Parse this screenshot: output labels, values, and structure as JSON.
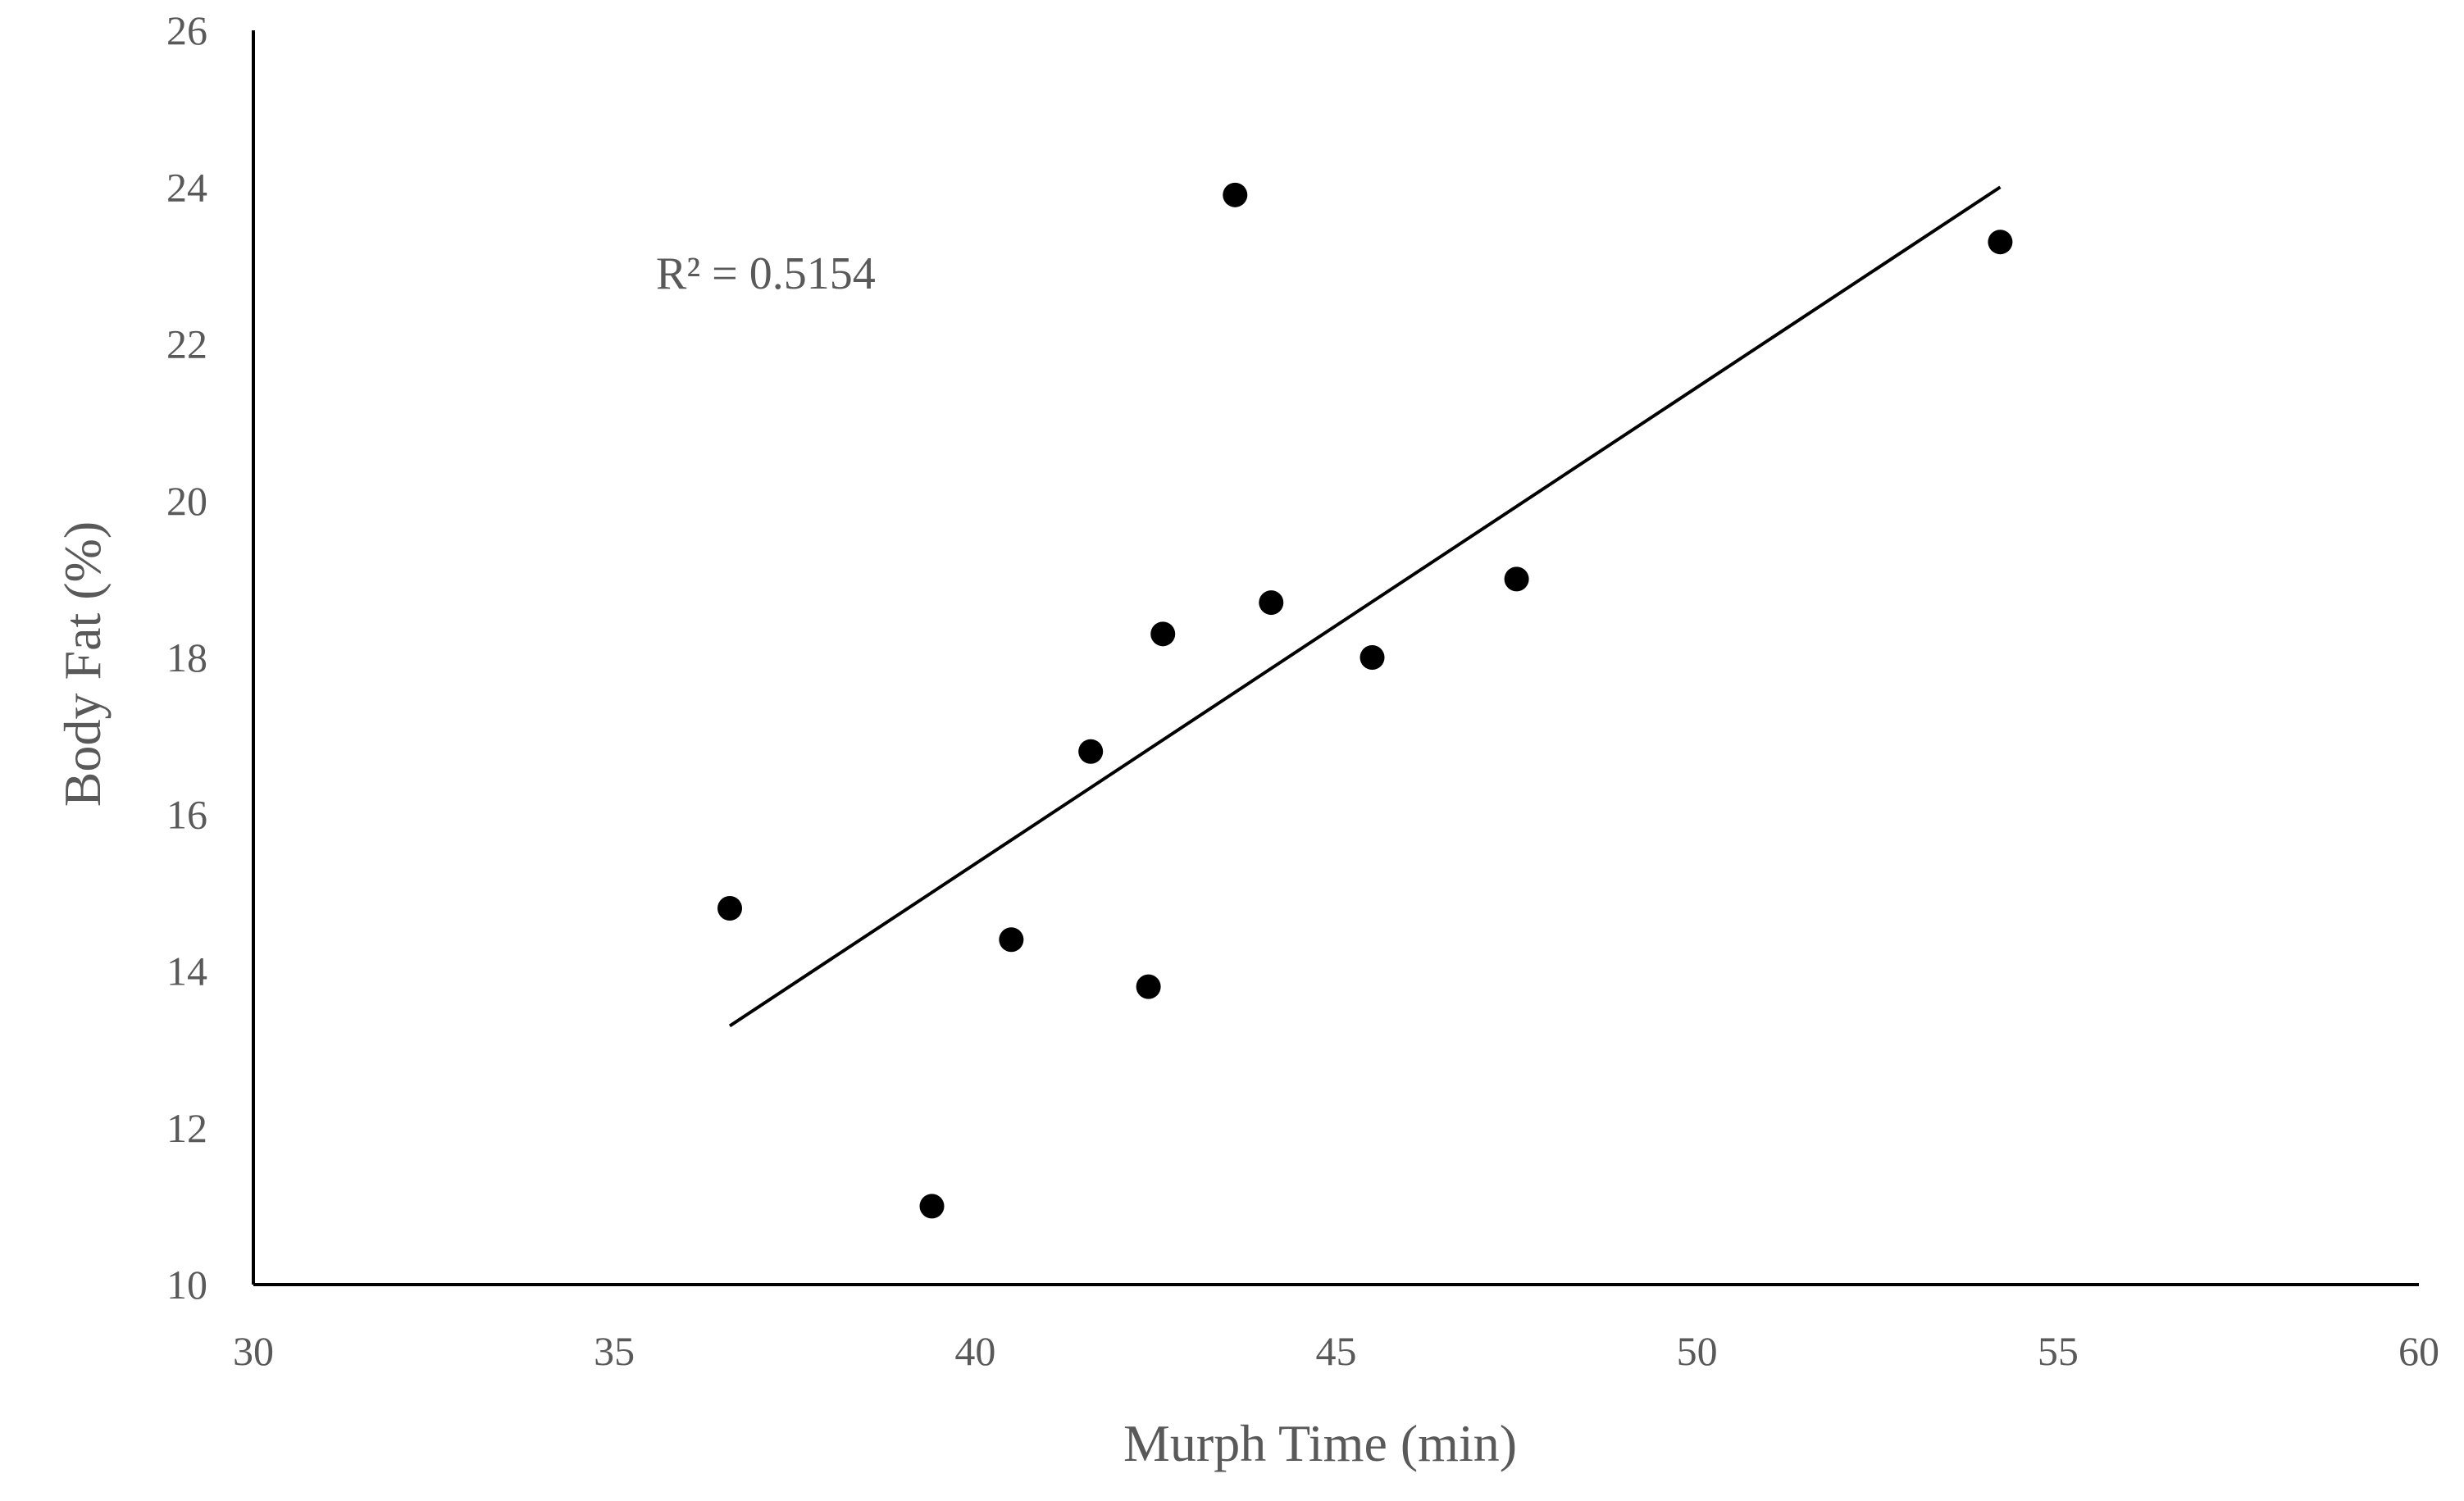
{
  "chart_data": {
    "type": "scatter",
    "title": "",
    "xlabel": "Murph Time (min)",
    "ylabel": "Body Fat (%)",
    "xlim": [
      30,
      60
    ],
    "ylim": [
      10,
      26
    ],
    "x_ticks": [
      "30",
      "35",
      "40",
      "45",
      "50",
      "55",
      "60"
    ],
    "y_ticks": [
      "10",
      "12",
      "14",
      "16",
      "18",
      "20",
      "22",
      "24",
      "26"
    ],
    "grid": false,
    "legend": "none",
    "points": [
      {
        "x": 36.6,
        "y": 14.8
      },
      {
        "x": 39.4,
        "y": 11.0
      },
      {
        "x": 40.5,
        "y": 14.4
      },
      {
        "x": 41.6,
        "y": 16.8
      },
      {
        "x": 42.4,
        "y": 13.8
      },
      {
        "x": 42.6,
        "y": 18.3
      },
      {
        "x": 43.6,
        "y": 23.9
      },
      {
        "x": 44.1,
        "y": 18.7
      },
      {
        "x": 45.5,
        "y": 18.0
      },
      {
        "x": 47.5,
        "y": 19.0
      },
      {
        "x": 54.2,
        "y": 23.3
      }
    ],
    "trendline": {
      "x_start": 36.6,
      "y_start": 13.3,
      "x_end": 54.2,
      "y_end": 24.0
    },
    "annotation": "R² = 0.5154",
    "colors": {
      "points": "#000000",
      "trendline": "#000000",
      "axis": "#000000",
      "text": "#595959"
    }
  }
}
